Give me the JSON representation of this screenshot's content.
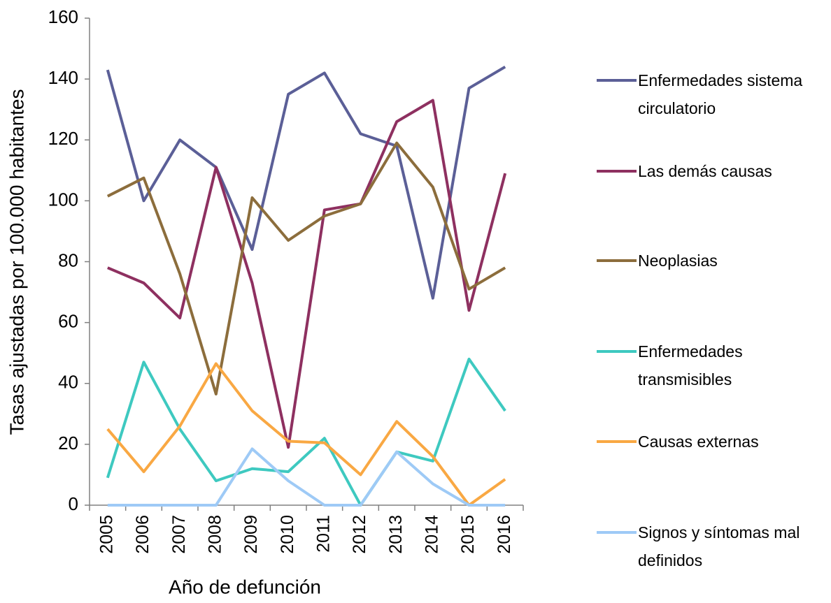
{
  "chart_data": {
    "type": "line",
    "xlabel": "Año de defunción",
    "ylabel": "Tasas ajustadas por 100.000 habitantes",
    "categories": [
      "2005",
      "2006",
      "2007",
      "2008",
      "2009",
      "2010",
      "2011",
      "2012",
      "2013",
      "2014",
      "2015",
      "2016"
    ],
    "ylim": [
      0,
      160
    ],
    "yticks": [
      0,
      20,
      40,
      60,
      80,
      100,
      120,
      140,
      160
    ],
    "grid": false,
    "legend": "right",
    "series": [
      {
        "name": "Enfermedades sistema circulatorio",
        "color": "#5b5f97",
        "values": [
          143,
          100,
          120,
          111,
          84,
          135,
          142,
          122,
          118,
          68,
          137,
          144
        ]
      },
      {
        "name": "Las demás causas",
        "color": "#8e3060",
        "values": [
          78,
          73,
          61.5,
          111,
          73,
          19,
          97,
          99,
          126,
          133,
          64,
          109
        ]
      },
      {
        "name": "Neoplasias",
        "color": "#8c6d3c",
        "values": [
          101.5,
          107.5,
          76,
          36.5,
          101,
          87,
          95,
          99,
          119,
          104.5,
          71,
          78
        ]
      },
      {
        "name": "Enfermedades transmisibles",
        "color": "#3ec9c0",
        "values": [
          9,
          47,
          25,
          8,
          12,
          11,
          22,
          0,
          17.5,
          14.5,
          48,
          31
        ]
      },
      {
        "name": "Causas externas",
        "color": "#f9a843",
        "values": [
          25,
          11,
          26,
          46.5,
          31,
          21,
          20.5,
          10,
          27.5,
          16,
          0,
          8.5
        ]
      },
      {
        "name": "Signos y síntomas mal definidos",
        "color": "#9ecaf6",
        "values": [
          0,
          0,
          0,
          0,
          18.5,
          8,
          0,
          0,
          17.5,
          7,
          0,
          0
        ]
      }
    ]
  }
}
